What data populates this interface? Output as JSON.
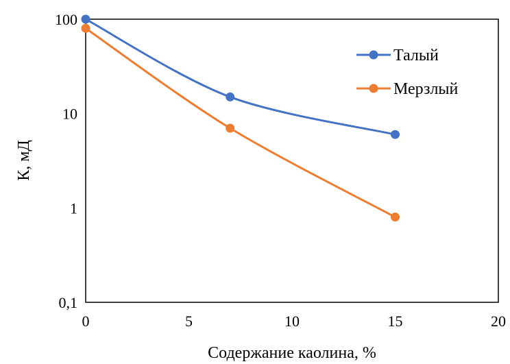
{
  "chart_data": {
    "type": "line",
    "title": "",
    "xlabel": "Содержание каолина, %",
    "ylabel": "К, мД",
    "xlim": [
      0,
      20
    ],
    "ylim": [
      0.1,
      100
    ],
    "y_scale": "log",
    "x_ticks": [
      "0",
      "5",
      "10",
      "15",
      "20"
    ],
    "y_ticks": [
      "0,1",
      "1",
      "10",
      "100"
    ],
    "grid": false,
    "legend_position": "top-right",
    "series": [
      {
        "name": "Талый",
        "color": "#4472C4",
        "x": [
          0,
          7,
          15
        ],
        "y": [
          100,
          15,
          6
        ]
      },
      {
        "name": "Мерзлый",
        "color": "#ED7D31",
        "x": [
          0,
          7,
          15
        ],
        "y": [
          80,
          7,
          0.8
        ]
      }
    ]
  }
}
